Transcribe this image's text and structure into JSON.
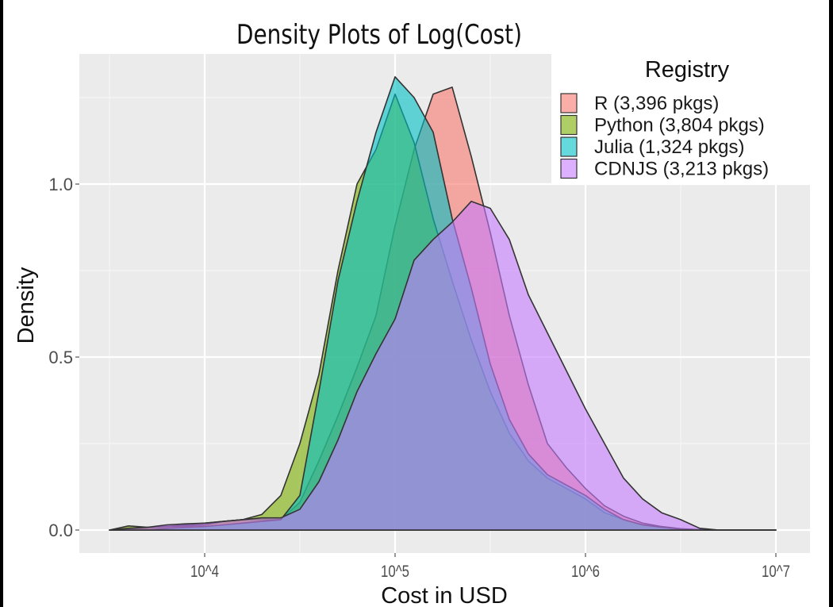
{
  "chart_data": {
    "type": "area",
    "title": "Density Plots of Log(Cost)",
    "xlabel": "Cost in USD",
    "ylabel": "Density",
    "x_scale": "log10",
    "xlim": [
      3162,
      10000000
    ],
    "ylim": [
      0,
      1.35
    ],
    "x_ticks": [
      10000,
      100000,
      1000000,
      10000000
    ],
    "x_tick_labels": [
      "10^4",
      "10^5",
      "10^6",
      "10^7"
    ],
    "y_ticks": [
      0,
      0.5,
      1.0
    ],
    "y_tick_labels": [
      "0.0",
      "0.5",
      "1.0"
    ],
    "grid": true,
    "legend": {
      "title": "Registry",
      "placement": "top-right"
    },
    "x": [
      3162,
      3981,
      5012,
      6310,
      7943,
      10000,
      12589,
      15849,
      19953,
      25119,
      31623,
      39811,
      50119,
      63096,
      79433,
      100000,
      125893,
      158489,
      199526,
      251189,
      316228,
      398107,
      501187,
      630957,
      794328,
      1000000,
      1258925,
      1584893,
      1995262,
      2511886,
      3162278,
      3981072,
      5011872,
      6309573,
      7943282,
      10000000
    ],
    "series": [
      {
        "name": "R (3,396 pkgs)",
        "color": "#F8766D",
        "values": [
          0,
          0.002,
          0.005,
          0.01,
          0.015,
          0.02,
          0.025,
          0.03,
          0.03,
          0.03,
          0.08,
          0.2,
          0.33,
          0.47,
          0.62,
          0.88,
          1.1,
          1.26,
          1.28,
          1.08,
          0.86,
          0.62,
          0.42,
          0.25,
          0.18,
          0.12,
          0.07,
          0.04,
          0.02,
          0.01,
          0.004,
          0.001,
          0,
          0,
          0,
          0
        ]
      },
      {
        "name": "Python (3,804 pkgs)",
        "color": "#7CAE00",
        "values": [
          0,
          0.012,
          0.008,
          0.01,
          0.012,
          0.015,
          0.025,
          0.03,
          0.045,
          0.1,
          0.25,
          0.45,
          0.75,
          1.0,
          1.1,
          1.26,
          1.12,
          0.9,
          0.72,
          0.55,
          0.4,
          0.28,
          0.2,
          0.15,
          0.12,
          0.09,
          0.05,
          0.03,
          0.015,
          0.008,
          0.003,
          0.001,
          0,
          0,
          0,
          0
        ]
      },
      {
        "name": "Julia (1,324 pkgs)",
        "color": "#00BFC4",
        "values": [
          0,
          0,
          0,
          0.005,
          0.008,
          0.01,
          0.015,
          0.02,
          0.025,
          0.03,
          0.1,
          0.4,
          0.72,
          0.95,
          1.15,
          1.31,
          1.25,
          1.15,
          0.9,
          0.7,
          0.48,
          0.32,
          0.22,
          0.16,
          0.13,
          0.1,
          0.06,
          0.03,
          0.015,
          0.008,
          0.003,
          0.001,
          0,
          0,
          0,
          0
        ]
      },
      {
        "name": "CDNJS (3,213 pkgs)",
        "color": "#C77CFF",
        "values": [
          0,
          0.005,
          0.008,
          0.015,
          0.018,
          0.02,
          0.025,
          0.03,
          0.035,
          0.035,
          0.06,
          0.14,
          0.26,
          0.4,
          0.51,
          0.61,
          0.78,
          0.84,
          0.89,
          0.95,
          0.93,
          0.84,
          0.68,
          0.57,
          0.46,
          0.35,
          0.25,
          0.15,
          0.09,
          0.05,
          0.03,
          0.005,
          0,
          0,
          0,
          0
        ]
      }
    ]
  }
}
